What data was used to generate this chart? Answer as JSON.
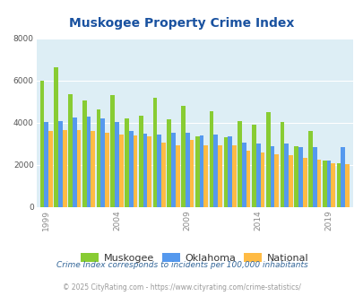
{
  "title": "Muskogee Property Crime Index",
  "title_color": "#1a52a0",
  "years": [
    1999,
    2000,
    2001,
    2002,
    2003,
    2004,
    2005,
    2006,
    2007,
    2008,
    2009,
    2010,
    2011,
    2012,
    2013,
    2014,
    2015,
    2016,
    2017,
    2018,
    2019,
    2020
  ],
  "muskogee": [
    6000,
    6650,
    5350,
    5050,
    4650,
    5300,
    4200,
    4350,
    5200,
    4150,
    4800,
    3350,
    4550,
    3300,
    4100,
    3900,
    4500,
    4050,
    2900,
    3600,
    2200,
    2100
  ],
  "oklahoma": [
    4050,
    4100,
    4250,
    4300,
    4200,
    4050,
    3600,
    3500,
    3450,
    3550,
    3550,
    3400,
    3450,
    3350,
    3050,
    3000,
    2900,
    3000,
    2850,
    2850,
    2200,
    2850
  ],
  "national": [
    3600,
    3650,
    3650,
    3600,
    3550,
    3450,
    3400,
    3350,
    3050,
    2950,
    3200,
    2950,
    2950,
    2950,
    2700,
    2600,
    2500,
    2450,
    2350,
    2250,
    2100,
    2050
  ],
  "muskogee_color": "#88cc33",
  "oklahoma_color": "#5599ee",
  "national_color": "#ffbb44",
  "plot_bg": "#ddeef5",
  "ylim": [
    0,
    8000
  ],
  "yticks": [
    0,
    2000,
    4000,
    6000,
    8000
  ],
  "xlabel_ticks": [
    1999,
    2004,
    2009,
    2014,
    2019
  ],
  "footnote1": "Crime Index corresponds to incidents per 100,000 inhabitants",
  "footnote2": "© 2025 CityRating.com - https://www.cityrating.com/crime-statistics/",
  "footnote1_color": "#336699",
  "footnote2_color": "#999999"
}
